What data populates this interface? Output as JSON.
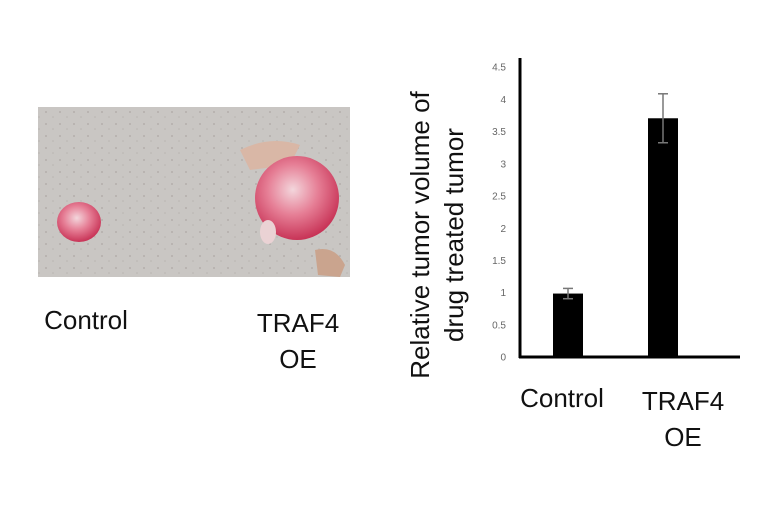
{
  "photo_labels": [
    "Control",
    "TRAF4 OE"
  ],
  "chart_data": {
    "type": "bar",
    "ylabel": [
      "Relative tumor volume of",
      "drug treated tumor"
    ],
    "categories": [
      "Control",
      "TRAF4 OE"
    ],
    "values": [
      1.0,
      3.72
    ],
    "errors": [
      0.08,
      0.38
    ],
    "color": "#000000",
    "ylim": [
      0,
      4.5
    ],
    "yticks": [
      0,
      0.5,
      1,
      1.5,
      2,
      2.5,
      3,
      3.5,
      4,
      4.5
    ]
  }
}
